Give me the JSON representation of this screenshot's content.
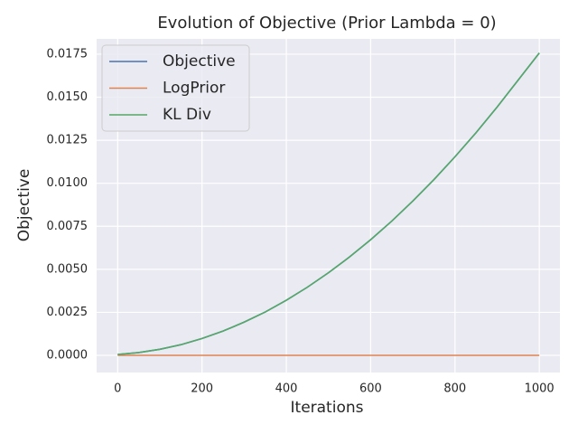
{
  "chart_data": {
    "type": "line",
    "title": "Evolution of Objective (Prior Lambda = 0)",
    "x_label": "Iterations",
    "y_label": "Objective",
    "x": [
      0,
      50,
      100,
      150,
      200,
      250,
      300,
      350,
      400,
      450,
      500,
      550,
      600,
      650,
      700,
      750,
      800,
      850,
      900,
      950,
      1000
    ],
    "series": [
      {
        "name": "Objective",
        "color": "#4c72b0",
        "values": [
          5e-05,
          0.00016,
          0.00035,
          0.00062,
          0.00098,
          0.00141,
          0.00193,
          0.00252,
          0.0032,
          0.00396,
          0.0048,
          0.00572,
          0.00672,
          0.0078,
          0.00897,
          0.01021,
          0.01154,
          0.01294,
          0.01443,
          0.016,
          0.01757
        ]
      },
      {
        "name": "LogPrior",
        "color": "#dd8452",
        "values": [
          0,
          0,
          0,
          0,
          0,
          0,
          0,
          0,
          0,
          0,
          0,
          0,
          0,
          0,
          0,
          0,
          0,
          0,
          0,
          0,
          0
        ]
      },
      {
        "name": "KL Div",
        "color": "#55a868",
        "values": [
          5e-05,
          0.00016,
          0.00035,
          0.00062,
          0.00098,
          0.00141,
          0.00193,
          0.00252,
          0.0032,
          0.00396,
          0.0048,
          0.00572,
          0.00672,
          0.0078,
          0.00897,
          0.01021,
          0.01154,
          0.01294,
          0.01443,
          0.016,
          0.01757
        ]
      }
    ],
    "xlim": [
      -49.95,
      1048.95
    ],
    "xticks": [
      0,
      200,
      400,
      600,
      800,
      1000
    ],
    "ylim": [
      -0.000998,
      0.01839
    ],
    "yticks": [
      {
        "value": 0,
        "label": "0.0000"
      },
      {
        "value": 0.0025,
        "label": "0.0025"
      },
      {
        "value": 0.005,
        "label": "0.0050"
      },
      {
        "value": 0.0075,
        "label": "0.0075"
      },
      {
        "value": 0.01,
        "label": "0.0100"
      },
      {
        "value": 0.0125,
        "label": "0.0125"
      },
      {
        "value": 0.015,
        "label": "0.0150"
      },
      {
        "value": 0.0175,
        "label": "0.0175"
      }
    ],
    "grid": true,
    "legend": "upper-left"
  }
}
